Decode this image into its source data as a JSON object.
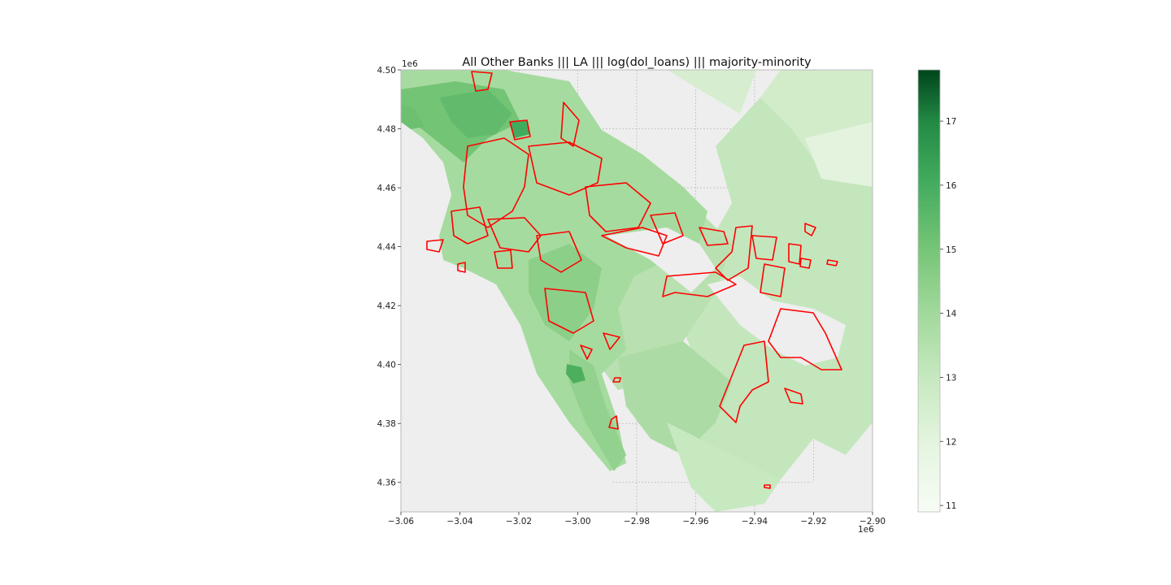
{
  "chart_data": {
    "type": "choropleth",
    "title": "All Other Banks ||| LA ||| log(dol_loans) ||| majority-minority",
    "xlabel": "",
    "ylabel": "",
    "x_ticks": [
      "−3.06",
      "−3.04",
      "−3.02",
      "−3.00",
      "−2.98",
      "−2.96",
      "−2.94",
      "−2.92",
      "−2.90"
    ],
    "y_ticks": [
      "4.36",
      "4.38",
      "4.40",
      "4.42",
      "4.44",
      "4.46",
      "4.48",
      "4.50"
    ],
    "x_offset_label": "1e6",
    "y_offset_label": "1e6",
    "xlim": [
      -3.06,
      -2.9
    ],
    "ylim": [
      4.35,
      4.5
    ],
    "grid": true,
    "colormap": "Greens",
    "colorbar": {
      "ticks": [
        "11",
        "12",
        "13",
        "14",
        "15",
        "16",
        "17"
      ],
      "range": [
        10.9,
        17.8
      ]
    },
    "highlight_color": "#ff0000",
    "background_color": "#eeeeee"
  }
}
